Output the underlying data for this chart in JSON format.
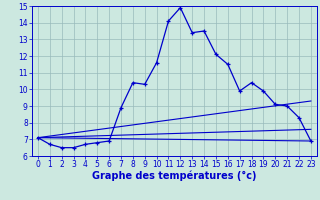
{
  "xlabel": "Graphe des températures (°c)",
  "bg_color": "#cce8e0",
  "grid_color": "#99bbbb",
  "line_color": "#0000cc",
  "spine_color": "#0000cc",
  "xlabel_color": "#0000cc",
  "tick_color": "#0000cc",
  "xlim": [
    -0.5,
    23.5
  ],
  "ylim": [
    6,
    15
  ],
  "xticks": [
    0,
    1,
    2,
    3,
    4,
    5,
    6,
    7,
    8,
    9,
    10,
    11,
    12,
    13,
    14,
    15,
    16,
    17,
    18,
    19,
    20,
    21,
    22,
    23
  ],
  "yticks": [
    6,
    7,
    8,
    9,
    10,
    11,
    12,
    13,
    14,
    15
  ],
  "main_x": [
    0,
    1,
    2,
    3,
    4,
    5,
    6,
    7,
    8,
    9,
    10,
    11,
    12,
    13,
    14,
    15,
    16,
    17,
    18,
    19,
    20,
    21,
    22,
    23
  ],
  "main_y": [
    7.1,
    6.7,
    6.5,
    6.5,
    6.7,
    6.8,
    6.9,
    8.9,
    10.4,
    10.3,
    11.6,
    14.1,
    14.9,
    13.4,
    13.5,
    12.1,
    11.5,
    9.9,
    10.4,
    9.9,
    9.1,
    9.0,
    8.3,
    6.9
  ],
  "line2_x": [
    0,
    23
  ],
  "line2_y": [
    7.1,
    6.9
  ],
  "line3_x": [
    0,
    23
  ],
  "line3_y": [
    7.1,
    7.6
  ],
  "line4_x": [
    0,
    23
  ],
  "line4_y": [
    7.1,
    9.3
  ],
  "xlabel_fontsize": 7,
  "tick_fontsize": 5.5
}
